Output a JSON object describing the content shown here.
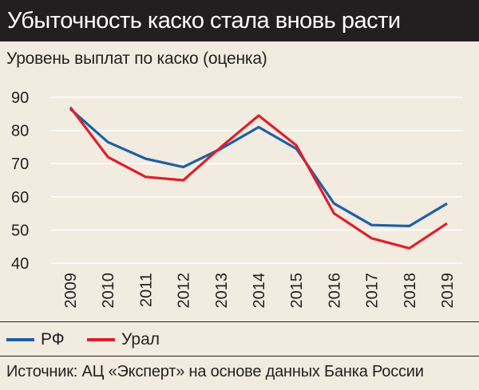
{
  "header": {
    "title": "Убыточность каско стала вновь расти"
  },
  "source_note": "Источник: АЦ «Эксперт» на основе данных Банка России",
  "colors": {
    "background": "#f1ebe0",
    "title_bg": "#231f20",
    "series_rf": "#1f5fa6",
    "series_ural": "#e11e2b",
    "grid": "#ffffff"
  },
  "chart_data": {
    "type": "line",
    "title": "Уровень выплат по каско (оценка)",
    "xlabel": "",
    "ylabel": "",
    "categories": [
      "2009",
      "2010",
      "2011",
      "2012",
      "2013",
      "2014",
      "2015",
      "2016",
      "2017",
      "2018",
      "2019"
    ],
    "ylim": [
      40,
      90
    ],
    "yticks": [
      40,
      50,
      60,
      70,
      80,
      90
    ],
    "grid": true,
    "legend_position": "bottom",
    "series": [
      {
        "name": "РФ",
        "color": "#1f5fa6",
        "values": [
          86.5,
          76.5,
          71.5,
          69.0,
          74.5,
          81.0,
          74.5,
          58.0,
          51.5,
          51.2,
          58.0
        ]
      },
      {
        "name": "Урал",
        "color": "#e11e2b",
        "values": [
          87.0,
          72.0,
          66.0,
          65.0,
          75.0,
          84.5,
          75.5,
          55.0,
          47.5,
          44.5,
          52.0
        ]
      }
    ]
  }
}
